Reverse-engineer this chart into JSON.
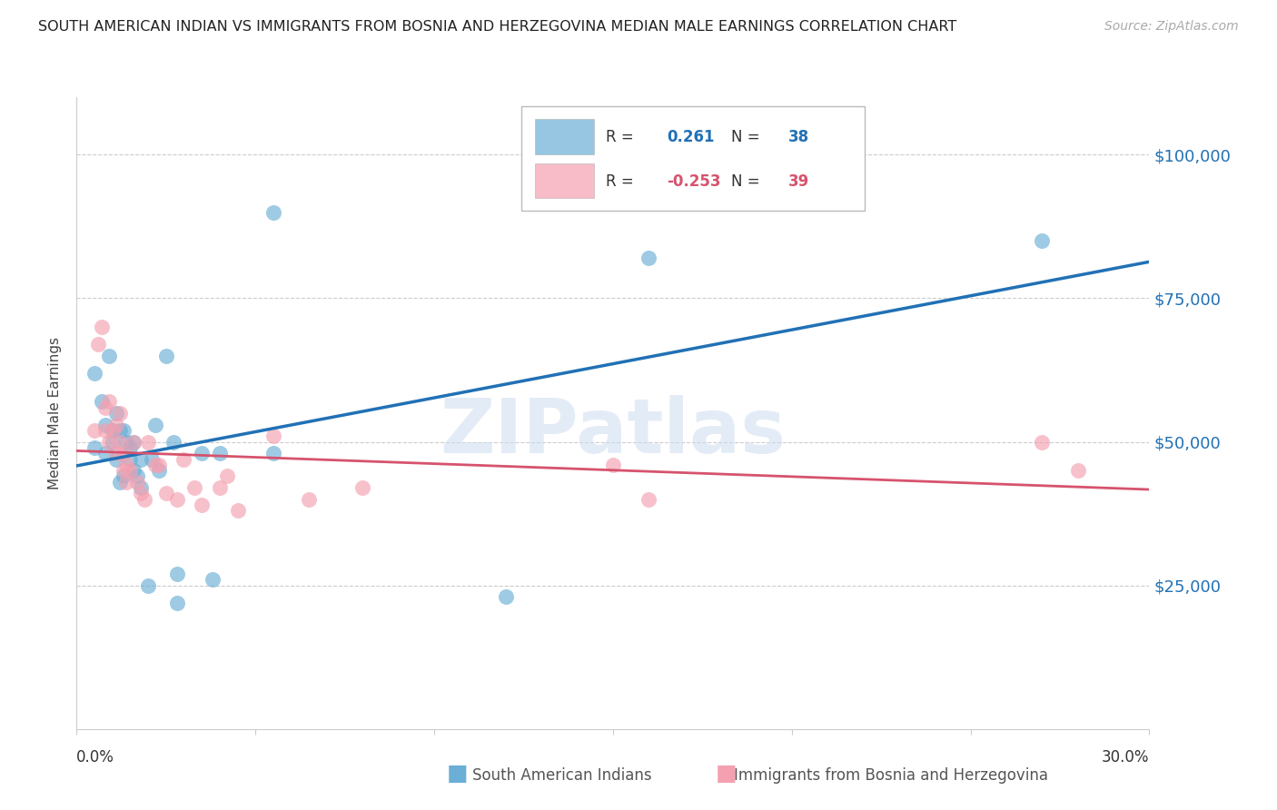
{
  "title": "SOUTH AMERICAN INDIAN VS IMMIGRANTS FROM BOSNIA AND HERZEGOVINA MEDIAN MALE EARNINGS CORRELATION CHART",
  "source": "Source: ZipAtlas.com",
  "ylabel": "Median Male Earnings",
  "ytick_labels": [
    "$25,000",
    "$50,000",
    "$75,000",
    "$100,000"
  ],
  "ytick_values": [
    25000,
    50000,
    75000,
    100000
  ],
  "ymin": 0,
  "ymax": 110000,
  "xmin": 0.0,
  "xmax": 0.3,
  "legend1_r": "0.261",
  "legend1_n": "38",
  "legend2_r": "-0.253",
  "legend2_n": "39",
  "blue_color": "#6baed6",
  "pink_color": "#f4a0b0",
  "blue_line_color": "#2171b5",
  "pink_line_color": "#d6536d",
  "watermark": "ZIPatlas",
  "blue_scatter_x": [
    0.005,
    0.005,
    0.007,
    0.008,
    0.008,
    0.009,
    0.01,
    0.01,
    0.011,
    0.011,
    0.012,
    0.012,
    0.013,
    0.013,
    0.014,
    0.015,
    0.015,
    0.016,
    0.016,
    0.017,
    0.018,
    0.018,
    0.02,
    0.021,
    0.022,
    0.023,
    0.025,
    0.027,
    0.028,
    0.028,
    0.035,
    0.038,
    0.04,
    0.055,
    0.055,
    0.12,
    0.16,
    0.27
  ],
  "blue_scatter_y": [
    49000,
    62000,
    57000,
    48000,
    53000,
    65000,
    50000,
    52000,
    47000,
    55000,
    43000,
    52000,
    52000,
    44000,
    50000,
    49000,
    47000,
    45000,
    50000,
    44000,
    42000,
    47000,
    25000,
    47000,
    53000,
    45000,
    65000,
    50000,
    27000,
    22000,
    48000,
    26000,
    48000,
    48000,
    90000,
    23000,
    82000,
    85000
  ],
  "pink_scatter_x": [
    0.005,
    0.006,
    0.007,
    0.008,
    0.008,
    0.009,
    0.009,
    0.01,
    0.011,
    0.011,
    0.012,
    0.012,
    0.013,
    0.013,
    0.014,
    0.014,
    0.015,
    0.016,
    0.017,
    0.018,
    0.019,
    0.02,
    0.022,
    0.023,
    0.025,
    0.028,
    0.03,
    0.033,
    0.035,
    0.04,
    0.042,
    0.045,
    0.055,
    0.065,
    0.08,
    0.15,
    0.16,
    0.27,
    0.28
  ],
  "pink_scatter_y": [
    52000,
    67000,
    70000,
    52000,
    56000,
    57000,
    50000,
    52000,
    53000,
    48000,
    55000,
    50000,
    48000,
    45000,
    46000,
    43000,
    45000,
    50000,
    43000,
    41000,
    40000,
    50000,
    46000,
    46000,
    41000,
    40000,
    47000,
    42000,
    39000,
    42000,
    44000,
    38000,
    51000,
    40000,
    42000,
    46000,
    40000,
    50000,
    45000
  ]
}
